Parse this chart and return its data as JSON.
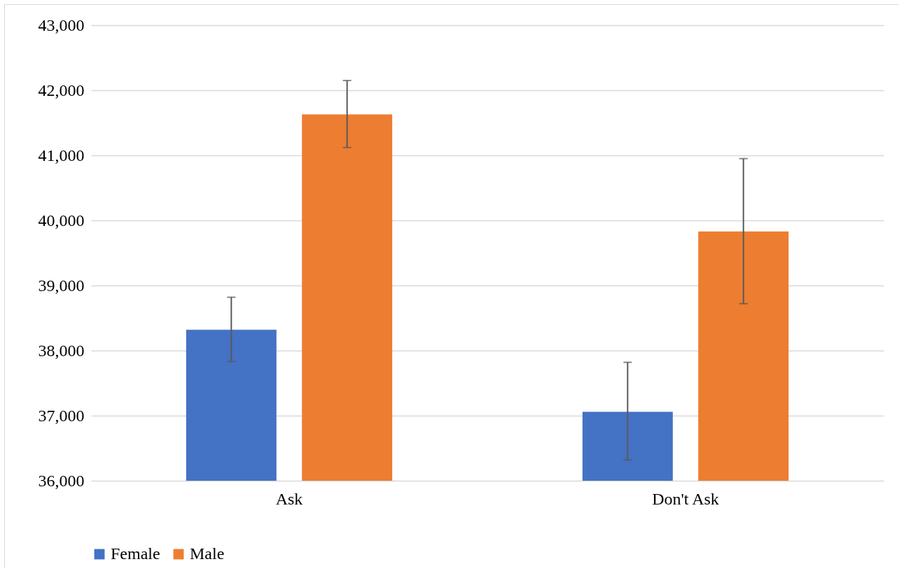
{
  "chart_data": {
    "type": "bar",
    "categories": [
      "Ask",
      "Don't Ask"
    ],
    "series": [
      {
        "name": "Female",
        "color": "#4472c4",
        "values": [
          38320,
          37060
        ],
        "errors": [
          [
            37830,
            38820
          ],
          [
            36320,
            37820
          ]
        ]
      },
      {
        "name": "Male",
        "color": "#ed7d31",
        "values": [
          41630,
          39830
        ],
        "errors": [
          [
            41120,
            42150
          ],
          [
            38720,
            40950
          ]
        ]
      }
    ],
    "ylim": [
      36000,
      43000
    ],
    "yticks": [
      {
        "value": 36000,
        "label": "36,000"
      },
      {
        "value": 37000,
        "label": "37,000"
      },
      {
        "value": 38000,
        "label": "38,000"
      },
      {
        "value": 39000,
        "label": "39,000"
      },
      {
        "value": 40000,
        "label": "40,000"
      },
      {
        "value": 41000,
        "label": "41,000"
      },
      {
        "value": 42000,
        "label": "42,000"
      },
      {
        "value": 43000,
        "label": "43,000"
      }
    ],
    "grid": "y",
    "legend": "bottom"
  }
}
